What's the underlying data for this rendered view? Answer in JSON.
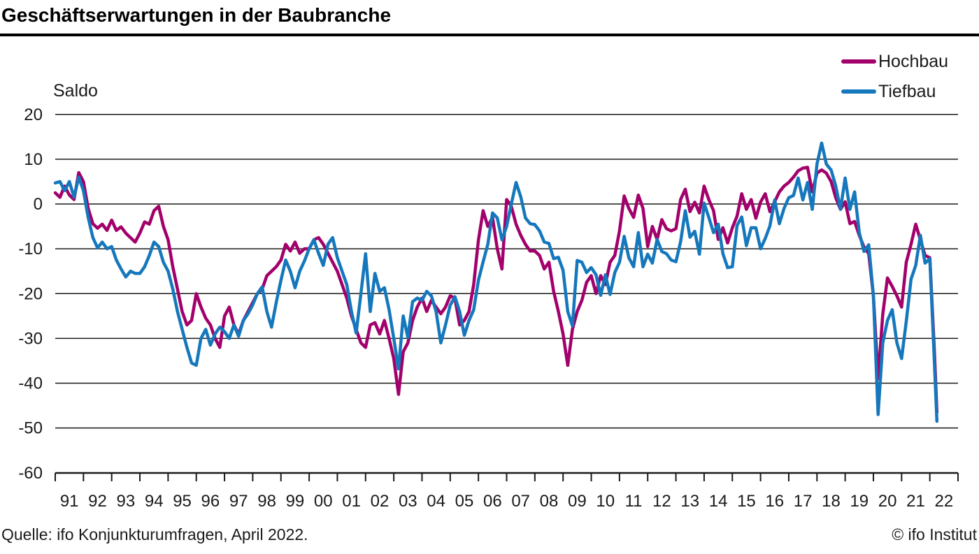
{
  "header": {
    "title": "Geschäftserwartungen in der Baubranche"
  },
  "y_axis_label": "Saldo",
  "legend": {
    "items": [
      {
        "label": "Hochbau",
        "color": "#a2006b"
      },
      {
        "label": "Tiefbau",
        "color": "#1577bc"
      }
    ]
  },
  "footer": {
    "source": "Quelle: ifo Konjunkturumfragen, April 2022.",
    "copyright": "© ifo Institut"
  },
  "chart_data": {
    "type": "line",
    "title": "Geschäftserwartungen in der Baubranche",
    "ylabel": "Saldo",
    "ylim": [
      -60,
      20
    ],
    "grid": "horizontal",
    "legend_position": "top-right",
    "x_start_year": 1991,
    "points_per_year": 6,
    "x_extra": [
      2022.0,
      2022.1667,
      2022.25
    ],
    "x_axis_end_year": 2023,
    "y_ticks": [
      20,
      10,
      0,
      -10,
      -20,
      -30,
      -40,
      -50,
      -60
    ],
    "y_tick_labels": [
      "20",
      "10",
      "0",
      "-10",
      "-20",
      "-30",
      "-40",
      "-50",
      "-60"
    ],
    "x_tick_labels": [
      "91",
      "92",
      "93",
      "94",
      "95",
      "96",
      "97",
      "98",
      "99",
      "00",
      "01",
      "02",
      "03",
      "04",
      "05",
      "06",
      "07",
      "08",
      "09",
      "10",
      "11",
      "12",
      "13",
      "14",
      "15",
      "16",
      "17",
      "18",
      "19",
      "20",
      "21",
      "22"
    ],
    "series": [
      {
        "name": "Hochbau",
        "color": "#a2006b",
        "values": [
          2.5,
          1.5,
          4,
          2,
          1,
          7,
          5,
          -1,
          -4.4,
          -5.4,
          -4.5,
          -5.9,
          -3.6,
          -5.9,
          -5.1,
          -6.5,
          -7.5,
          -8.5,
          -6.5,
          -4,
          -4.5,
          -1.5,
          -0.5,
          -5,
          -8,
          -14,
          -19,
          -24,
          -27,
          -26,
          -20,
          -23,
          -25.5,
          -27,
          -30,
          -32,
          -25,
          -23,
          -27,
          -29,
          -26,
          -24,
          -22,
          -20,
          -19,
          -16,
          -15,
          -14,
          -12.5,
          -9,
          -10.5,
          -8.5,
          -11,
          -10,
          -10,
          -8,
          -7.5,
          -9,
          -11,
          -13,
          -15,
          -18,
          -21,
          -25,
          -28,
          -31,
          -32,
          -27,
          -26.5,
          -29,
          -26,
          -30,
          -34.5,
          -42.5,
          -33,
          -31,
          -26,
          -23,
          -21,
          -24,
          -21.5,
          -23,
          -24.5,
          -23,
          -20.5,
          -21,
          -27,
          -26,
          -24,
          -18,
          -8,
          -1.5,
          -5,
          -3,
          -10,
          -14.5,
          1,
          -0.5,
          -4.5,
          -7,
          -9,
          -10.5,
          -10.5,
          -11.5,
          -14.5,
          -13,
          -19.5,
          -24,
          -29,
          -36,
          -28,
          -24,
          -21.5,
          -17.5,
          -16,
          -20,
          -16,
          -18,
          -13,
          -11.5,
          -6,
          1.8,
          -1,
          -3,
          2,
          -1,
          -9.5,
          -5,
          -7.9,
          -3.5,
          -5.5,
          -6,
          -5.5,
          1,
          3.3,
          -1.7,
          0.4,
          -2,
          4,
          1,
          -1.5,
          -7.9,
          -5.3,
          -8.7,
          -5.3,
          -2.7,
          2.3,
          -1.2,
          1,
          -3.2,
          0.4,
          2.3,
          -1.7,
          0.5,
          2.7,
          4,
          4.8,
          6,
          7.4,
          8,
          8.2,
          2.7,
          6.9,
          7.6,
          6.9,
          5,
          1.4,
          -1.2,
          0.5,
          -4.4,
          -3.9,
          -7,
          -9.6,
          -11.1,
          -20.5,
          -39,
          -24.6,
          -16.5,
          -18.4,
          -20.5,
          -23,
          -13,
          -9,
          -4.5,
          -8,
          -11.5,
          -12,
          -33.5,
          -46.5
        ]
      },
      {
        "name": "Tiefbau",
        "color": "#1577bc",
        "values": [
          4.7,
          5,
          3,
          5,
          1.5,
          6,
          3,
          -3,
          -7.5,
          -9.8,
          -8.5,
          -10,
          -9.5,
          -12.5,
          -14.5,
          -16.3,
          -15,
          -15.5,
          -15.5,
          -14,
          -11.5,
          -8.5,
          -9.5,
          -13,
          -15,
          -19,
          -24,
          -28,
          -32,
          -35.5,
          -36,
          -30,
          -28,
          -31.5,
          -29,
          -27.5,
          -28.5,
          -30,
          -27,
          -29.5,
          -26,
          -24.5,
          -22.5,
          -20,
          -18.5,
          -24,
          -27.5,
          -22,
          -17,
          -12.5,
          -15,
          -18.7,
          -15,
          -12.7,
          -10,
          -8,
          -11,
          -13.7,
          -9,
          -7.5,
          -12,
          -15,
          -18,
          -24,
          -28.8,
          -20,
          -11.1,
          -24,
          -15.5,
          -19.5,
          -18.7,
          -23.6,
          -30,
          -36.8,
          -25,
          -29.8,
          -21.8,
          -21,
          -21.5,
          -19.5,
          -20.5,
          -24,
          -31,
          -27,
          -22.6,
          -20.7,
          -24,
          -29.3,
          -26,
          -23.6,
          -17,
          -12.9,
          -9,
          -2,
          -3.1,
          -8,
          -5,
          0,
          4.8,
          1.6,
          -3.1,
          -4.4,
          -4.6,
          -6,
          -8.5,
          -8.8,
          -12.2,
          -11.9,
          -14.8,
          -24,
          -27.2,
          -12.6,
          -13,
          -15.3,
          -14.2,
          -15.8,
          -20.4,
          -15.8,
          -20.2,
          -15.3,
          -13,
          -7.2,
          -12,
          -14,
          -6.4,
          -14,
          -11.2,
          -13.2,
          -7.9,
          -10.6,
          -11.1,
          -12.5,
          -12.9,
          -8.4,
          -1.5,
          -7.4,
          -6.1,
          -11.2,
          0.2,
          -3,
          -6.4,
          -4.5,
          -11.1,
          -14.2,
          -14,
          -4.8,
          -2.9,
          -9.3,
          -5.3,
          -5.3,
          -10,
          -7.7,
          -4.9,
          0.9,
          -4.4,
          -1,
          1.4,
          1.9,
          5.8,
          0.9,
          4.8,
          -1.2,
          8.9,
          13.6,
          8.9,
          7.6,
          4,
          -1.2,
          5.8,
          -1.2,
          2.7,
          -6.4,
          -10.6,
          -9.1,
          -20.5,
          -47,
          -31,
          -26,
          -23.6,
          -31,
          -34.5,
          -26.2,
          -16.8,
          -13.7,
          -7,
          -13.2,
          -12.2,
          -36,
          -48.5
        ]
      }
    ]
  }
}
